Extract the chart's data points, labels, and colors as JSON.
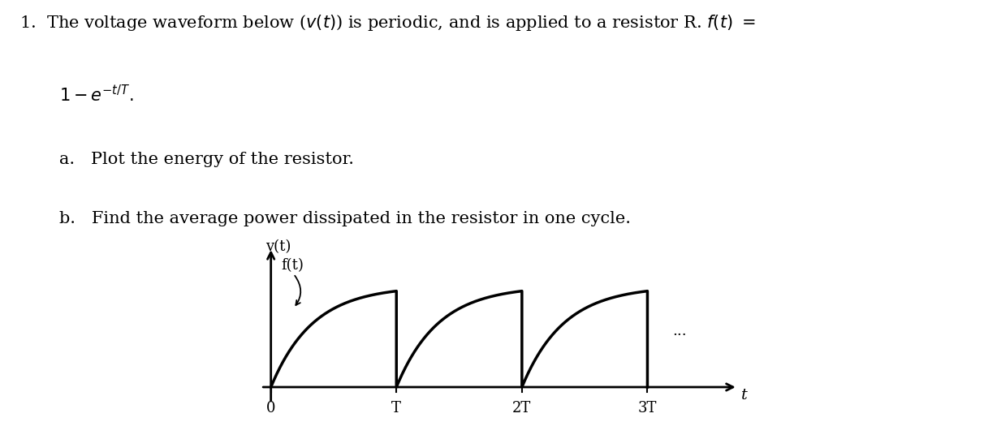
{
  "background_color": "#ffffff",
  "text_color": "#000000",
  "T": 1.0,
  "num_cycles": 3,
  "xtick_labels": [
    "0",
    "T",
    "2T",
    "3T"
  ],
  "dots": "...",
  "font_size_text": 15,
  "font_size_axis_label": 13,
  "font_size_tick": 13
}
